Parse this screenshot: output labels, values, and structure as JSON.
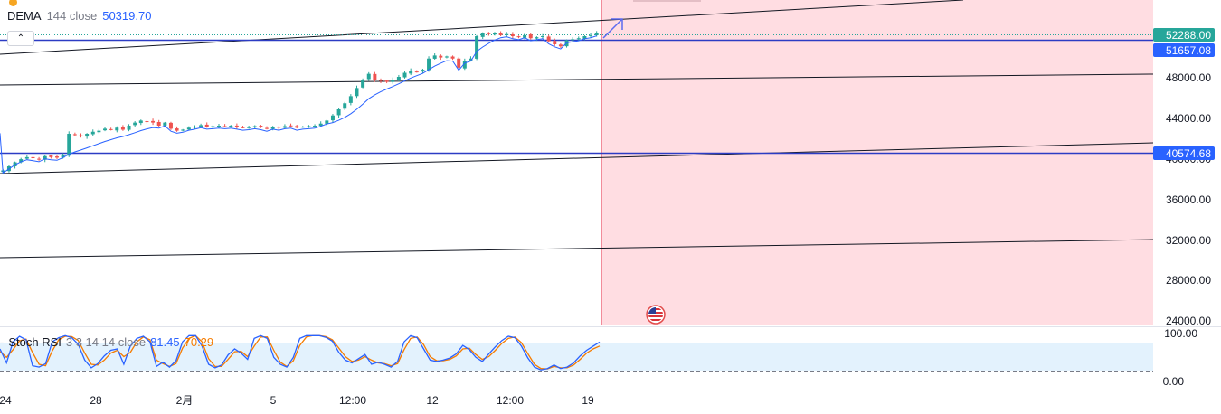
{
  "indicator": {
    "name": "DEMA",
    "params": "144 close",
    "value": "50319.70"
  },
  "stoch": {
    "name": "Stoch RSI",
    "params": "3 3 14 14 close",
    "k_value": "81.45",
    "d_value": "70.29"
  },
  "collapse_icon": "chevron-up-icon",
  "price_axis": {
    "ticks": [
      "48000.00",
      "44000.00",
      "36000.00",
      "32000.00",
      "28000.00",
      "24000.00"
    ],
    "tick_values": [
      48000,
      44000,
      36000,
      32000,
      28000,
      24000
    ],
    "current_price": {
      "label": "52288.00",
      "color": "#26a69a"
    },
    "dema_price": {
      "label": "51657.08",
      "color": "#2962ff"
    },
    "support_price": {
      "label": "40574.68",
      "color": "#2962ff"
    }
  },
  "stoch_axis": {
    "ticks": [
      "100.00",
      "0.00"
    ]
  },
  "time_axis": {
    "ticks": [
      "24",
      "28",
      "2月",
      "5",
      "12:00",
      "12",
      "12:00",
      "19"
    ]
  },
  "colors": {
    "up": "#26a69a",
    "down": "#ef5350",
    "dema": "#2962ff",
    "horizontal_line": "#2c3cc4",
    "stoch_k": "#2962ff",
    "stoch_d": "#f57c00",
    "zone_fill": "#ffdde2",
    "zone_border": "#f28b9a",
    "stoch_band": "#e3f2fd"
  },
  "flag_icon": "us-flag-icon",
  "arrow_icon": "arrow-up-right-icon",
  "chart_data": {
    "type": "candlestick",
    "price_range": [
      22500,
      56500
    ],
    "dema_level": 51657.08,
    "support_level": 40574.68,
    "last_price": 52288,
    "closes": [
      38800,
      39200,
      39600,
      39900,
      40100,
      40000,
      39900,
      40200,
      40100,
      40050,
      40300,
      42400,
      42300,
      42150,
      42400,
      42600,
      42700,
      42900,
      42800,
      43000,
      42800,
      43200,
      43500,
      43700,
      43600,
      43500,
      43200,
      43500,
      42900,
      42700,
      42800,
      43000,
      43100,
      43250,
      43100,
      43150,
      43200,
      43150,
      43200,
      43100,
      43000,
      43050,
      43150,
      43050,
      42900,
      43100,
      43000,
      43150,
      43200,
      43000,
      43100,
      43150,
      43200,
      43400,
      43700,
      44200,
      44800,
      45400,
      46100,
      46900,
      47700,
      48300,
      47700,
      47600,
      47500,
      47700,
      48000,
      48400,
      48600,
      48500,
      48700,
      49800,
      50100,
      49900,
      50000,
      49800,
      48900,
      49600,
      49800,
      52000,
      52300,
      52200,
      52300,
      52100,
      52200,
      52000,
      51900,
      52100,
      51800,
      51900,
      52000,
      51500,
      51200,
      51000,
      51600,
      51700,
      51800,
      52000,
      52100,
      52288
    ],
    "stoch_k": [
      62,
      22,
      82,
      98,
      88,
      14,
      10,
      20,
      82,
      94,
      100,
      94,
      75,
      30,
      8,
      20,
      42,
      58,
      62,
      18,
      70,
      92,
      98,
      82,
      12,
      24,
      10,
      28,
      82,
      100,
      100,
      70,
      18,
      8,
      16,
      45,
      62,
      50,
      32,
      92,
      100,
      92,
      38,
      18,
      10,
      38,
      92,
      100,
      100,
      100,
      95,
      84,
      52,
      30,
      22,
      34,
      46,
      18,
      24,
      18,
      10,
      26,
      82,
      100,
      94,
      62,
      30,
      26,
      30,
      36,
      48,
      72,
      60,
      38,
      26,
      48,
      68,
      86,
      98,
      94,
      70,
      36,
      10,
      2,
      6,
      16,
      6,
      10,
      22,
      42,
      58,
      70,
      81.45
    ],
    "stoch_d": [
      55,
      38,
      60,
      85,
      90,
      52,
      18,
      14,
      56,
      88,
      98,
      97,
      86,
      50,
      18,
      16,
      30,
      50,
      58,
      40,
      52,
      82,
      96,
      88,
      30,
      20,
      12,
      20,
      64,
      92,
      100,
      82,
      34,
      12,
      12,
      32,
      54,
      55,
      40,
      70,
      96,
      96,
      58,
      24,
      12,
      28,
      72,
      96,
      100,
      100,
      97,
      88,
      64,
      40,
      26,
      30,
      40,
      30,
      22,
      20,
      14,
      20,
      60,
      92,
      96,
      74,
      40,
      28,
      28,
      32,
      42,
      62,
      64,
      46,
      32,
      40,
      58,
      78,
      92,
      96,
      80,
      48,
      18,
      6,
      5,
      12,
      8,
      8,
      16,
      32,
      50,
      62,
      70.29
    ]
  }
}
